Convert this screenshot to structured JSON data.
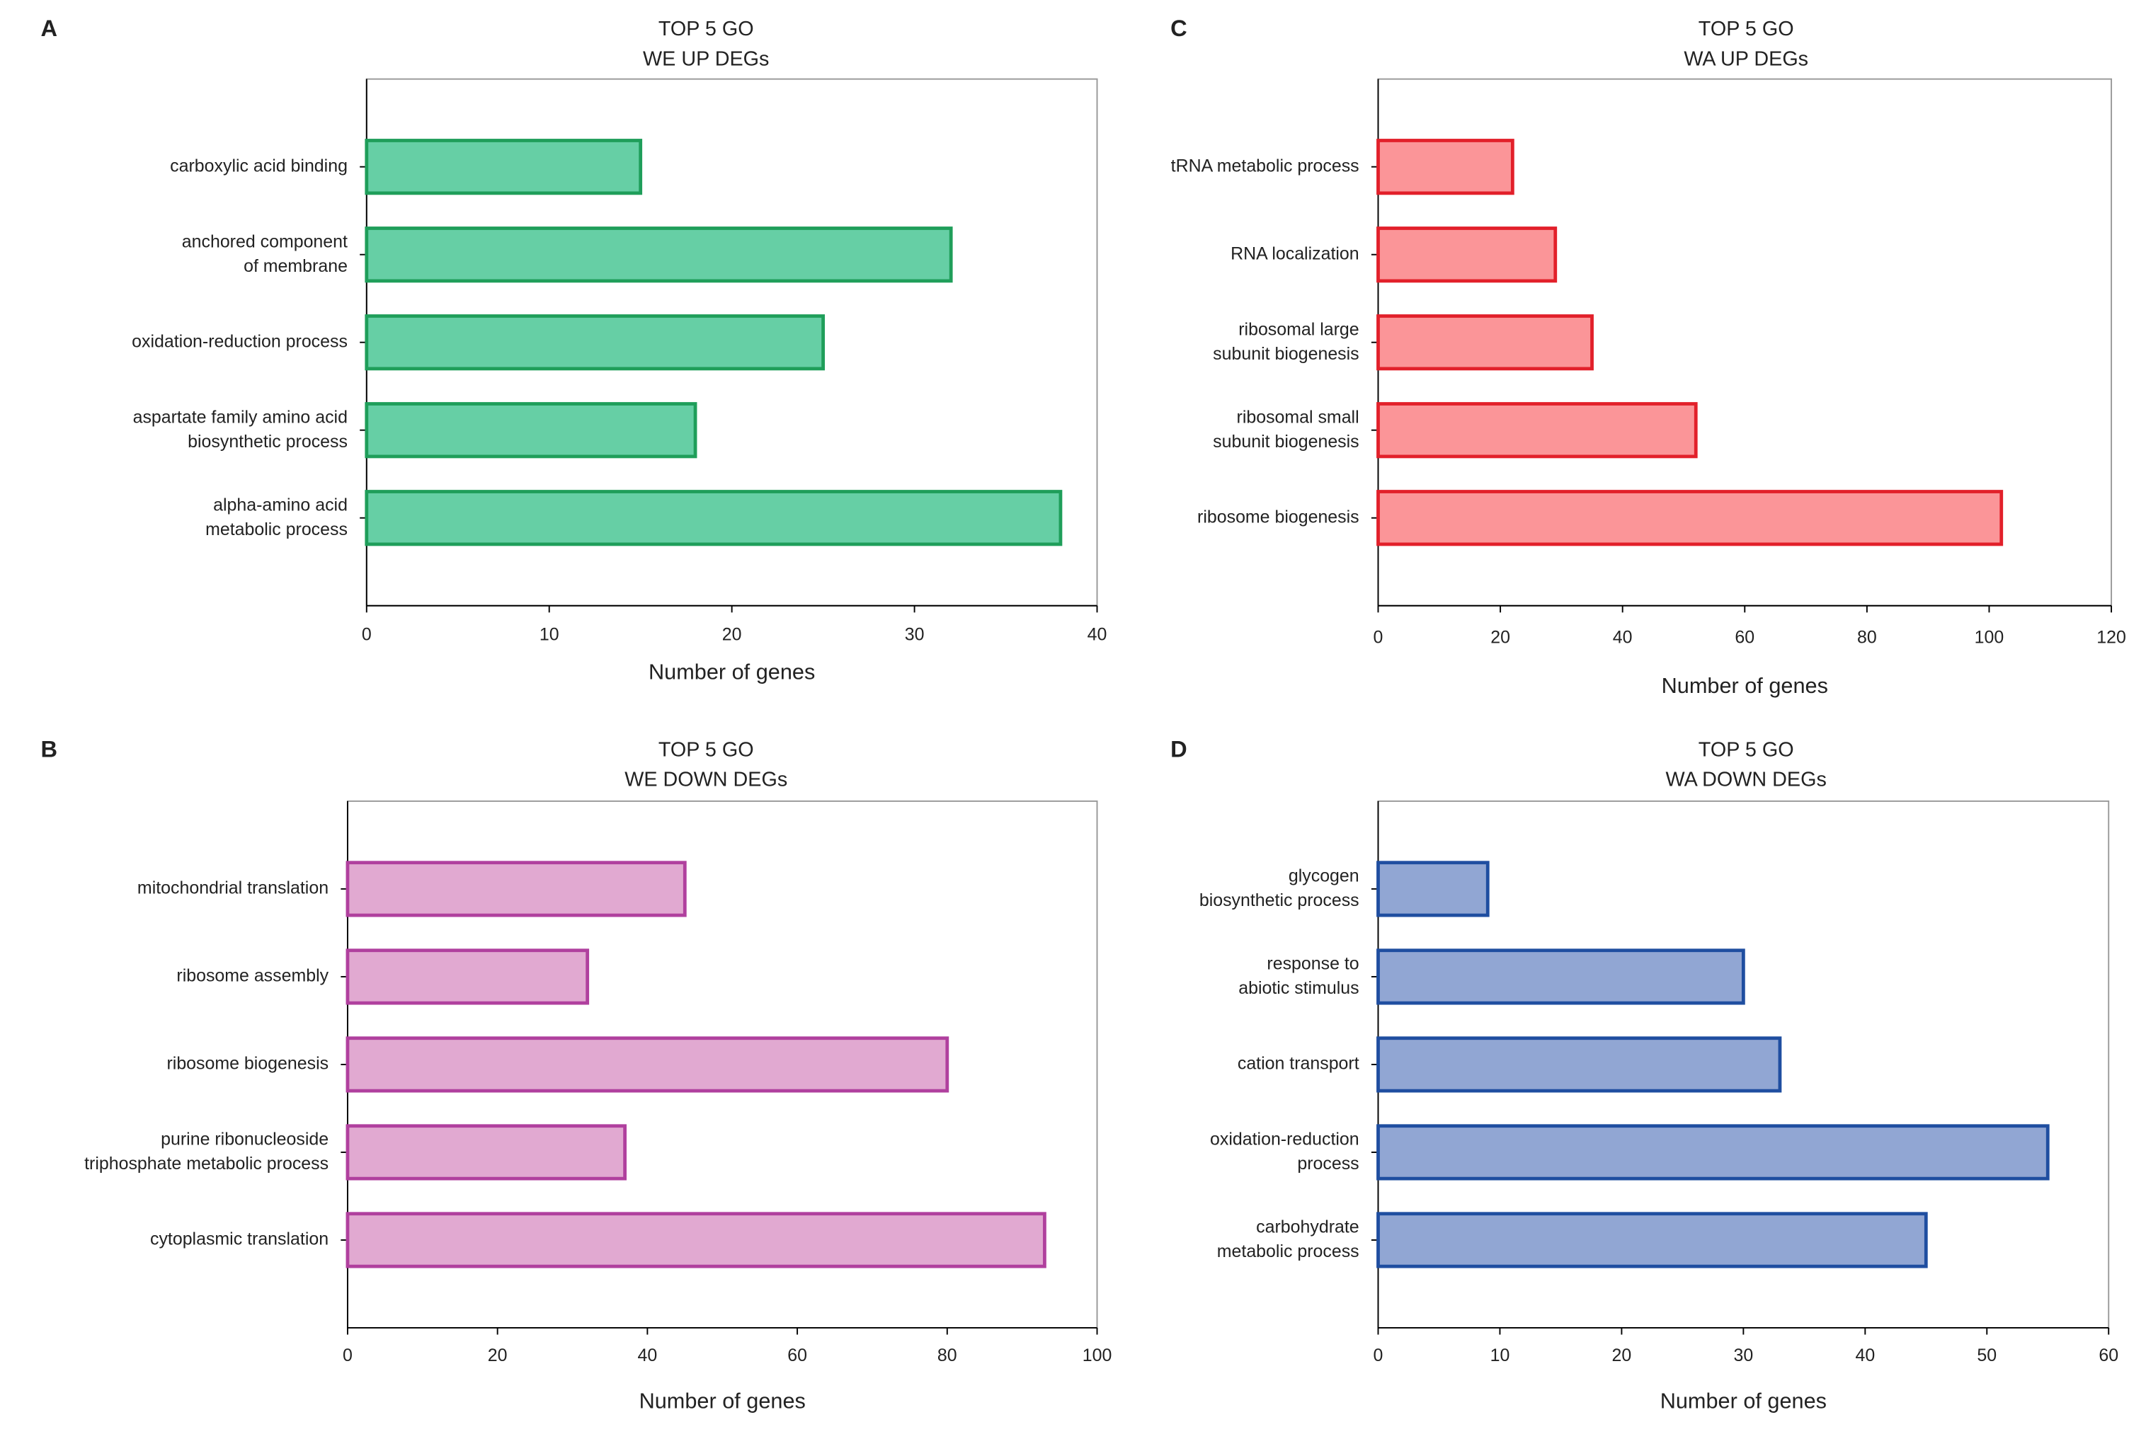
{
  "chart_data": [
    {
      "type": "barh",
      "panel": "A",
      "title": "TOP 5 GO",
      "subtitle": "WE UP DEGs",
      "x_label": "Number of genes",
      "categories": [
        "carboxylic acid binding",
        "anchored component\nof membrane",
        "oxidation-reduction process",
        "aspartate family amino acid\nbiosynthetic process",
        "alpha-amino acid\nmetabolic process"
      ],
      "values": [
        15,
        32,
        25,
        18,
        38
      ],
      "color": "#66cfa5",
      "edge_color": "#1f9e5a",
      "xlim": [
        0,
        40
      ],
      "xticks": [
        0,
        10,
        20,
        30,
        40
      ]
    },
    {
      "type": "barh",
      "panel": "B",
      "title": "TOP 5 GO",
      "subtitle": "WE DOWN DEGs",
      "x_label": "Number of genes",
      "categories": [
        "mitochondrial translation",
        "ribosome assembly",
        "ribosome biogenesis",
        "purine ribonucleoside\ntriphosphate metabolic process",
        "cytoplasmic translation"
      ],
      "values": [
        45,
        32,
        80,
        37,
        93
      ],
      "color": "#e1a9d1",
      "edge_color": "#b0409e",
      "xlim": [
        0,
        100
      ],
      "xticks": [
        0,
        20,
        40,
        60,
        80,
        100
      ]
    },
    {
      "type": "barh",
      "panel": "C",
      "title": "TOP 5 GO",
      "subtitle": "WA UP DEGs",
      "x_label": "Number of genes",
      "categories": [
        "tRNA metabolic process",
        "RNA localization",
        "ribosomal large\nsubunit biogenesis",
        "ribosomal small\nsubunit biogenesis",
        "ribosome biogenesis"
      ],
      "values": [
        22,
        29,
        35,
        52,
        102
      ],
      "color": "#fb9598",
      "edge_color": "#e2202a",
      "xlim": [
        0,
        120
      ],
      "xticks": [
        0,
        20,
        40,
        60,
        80,
        100,
        120
      ]
    },
    {
      "type": "barh",
      "panel": "D",
      "title": "TOP 5 GO",
      "subtitle": "WA DOWN DEGs",
      "x_label": "Number of genes",
      "categories": [
        "glycogen\nbiosynthetic process",
        "response to\nabiotic stimulus",
        "cation transport",
        "oxidation-reduction\nprocess",
        "carbohydrate\nmetabolic process"
      ],
      "values": [
        9,
        30,
        33,
        55,
        45
      ],
      "color": "#91a6d3",
      "edge_color": "#1f4ea0",
      "xlim": [
        0,
        60
      ],
      "xticks": [
        0,
        10,
        20,
        30,
        40,
        50,
        60
      ]
    }
  ]
}
